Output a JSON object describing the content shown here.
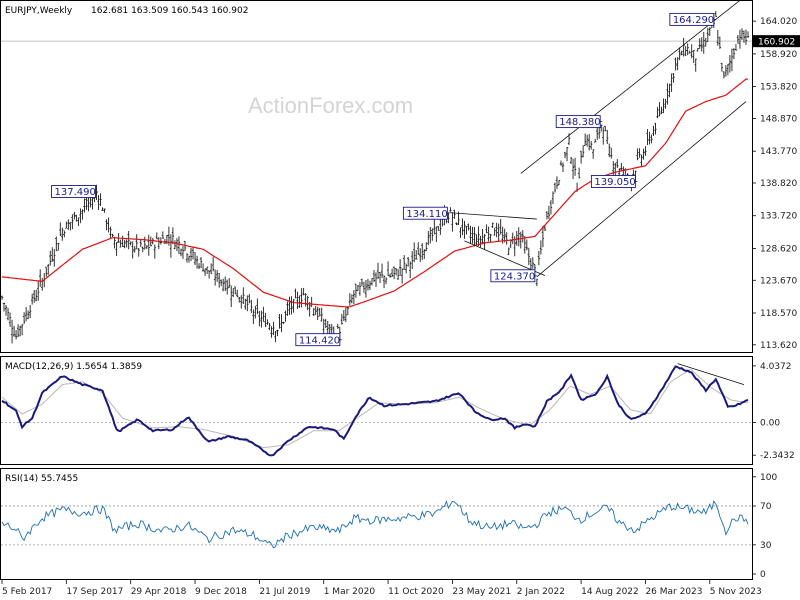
{
  "chart_data": [
    {
      "type": "bar",
      "panel": "price",
      "title": "EURJPY,Weekly",
      "ohlc_header": "162.681 163.509 160.543 160.902",
      "current_price_label": "160.902",
      "current_price": 160.902,
      "watermark": "ActionForex.com",
      "ylim": [
        112.5,
        167.0
      ],
      "y_ticks": [
        113.62,
        118.57,
        123.67,
        128.62,
        133.72,
        138.82,
        143.77,
        148.87,
        153.82,
        158.92,
        164.02
      ],
      "y_tick_labels": [
        "113.620",
        "118.570",
        "123.670",
        "128.620",
        "133.720",
        "138.820",
        "143.770",
        "148.870",
        "153.820",
        "158.920",
        "164.020"
      ],
      "x_tick_labels": [
        "5 Feb 2017",
        "17 Sep 2017",
        "29 Apr 2018",
        "9 Dec 2018",
        "21 Jul 2019",
        "1 Mar 2020",
        "11 Oct 2020",
        "23 May 2021",
        "2 Jan 2022",
        "14 Aug 2022",
        "26 Mar 2023",
        "5 Nov 2023"
      ],
      "x_tick_index": [
        0,
        32,
        64,
        96,
        128,
        160,
        192,
        224,
        256,
        288,
        320,
        352
      ],
      "week_count": 372,
      "price_path": [
        [
          0,
          121
        ],
        [
          14,
          115
        ],
        [
          40,
          123.5
        ],
        [
          60,
          131.5
        ],
        [
          80,
          134.5
        ],
        [
          95,
          137.5
        ],
        [
          110,
          130
        ],
        [
          140,
          128.5
        ],
        [
          165,
          130.5
        ],
        [
          180,
          129
        ],
        [
          195,
          126.5
        ],
        [
          215,
          124
        ],
        [
          235,
          121.5
        ],
        [
          255,
          118
        ],
        [
          275,
          116
        ],
        [
          285,
          119
        ],
        [
          300,
          121.5
        ],
        [
          310,
          119.5
        ],
        [
          320,
          117
        ],
        [
          330,
          115
        ],
        [
          338,
          116.5
        ],
        [
          350,
          121.5
        ],
        [
          370,
          124
        ],
        [
          390,
          124.5
        ],
        [
          410,
          127
        ],
        [
          430,
          131
        ],
        [
          445,
          134.1
        ],
        [
          460,
          131.5
        ],
        [
          475,
          130
        ],
        [
          490,
          132
        ],
        [
          505,
          129
        ],
        [
          515,
          131
        ],
        [
          525,
          127
        ],
        [
          532,
          124.37
        ],
        [
          540,
          132
        ],
        [
          548,
          137
        ],
        [
          556,
          141
        ],
        [
          564,
          145
        ],
        [
          572,
          138.5
        ],
        [
          580,
          146
        ],
        [
          588,
          144
        ],
        [
          597,
          148.38
        ],
        [
          605,
          143
        ],
        [
          615,
          141
        ],
        [
          625,
          139.05
        ],
        [
          632,
          142
        ],
        [
          640,
          144
        ],
        [
          648,
          147
        ],
        [
          656,
          150
        ],
        [
          664,
          154
        ],
        [
          672,
          158
        ],
        [
          680,
          160
        ],
        [
          690,
          158.5
        ],
        [
          700,
          161
        ],
        [
          710,
          164.29
        ],
        [
          718,
          155
        ],
        [
          726,
          158.5
        ],
        [
          734,
          162
        ],
        [
          742,
          161
        ]
      ],
      "ma_path": [
        [
          0,
          124.2
        ],
        [
          40,
          123.5
        ],
        [
          80,
          128.5
        ],
        [
          110,
          130.3
        ],
        [
          140,
          130
        ],
        [
          170,
          129.5
        ],
        [
          200,
          128.5
        ],
        [
          230,
          125.5
        ],
        [
          260,
          121.8
        ],
        [
          290,
          120.2
        ],
        [
          320,
          119.8
        ],
        [
          345,
          119.5
        ],
        [
          360,
          120.3
        ],
        [
          390,
          122
        ],
        [
          420,
          125
        ],
        [
          450,
          128.2
        ],
        [
          480,
          129.5
        ],
        [
          510,
          130
        ],
        [
          530,
          130.5
        ],
        [
          550,
          134
        ],
        [
          570,
          137.5
        ],
        [
          590,
          139.5
        ],
        [
          610,
          140.5
        ],
        [
          640,
          141.5
        ],
        [
          660,
          145
        ],
        [
          680,
          150
        ],
        [
          700,
          151.5
        ],
        [
          720,
          152.5
        ],
        [
          740,
          155
        ]
      ],
      "channel_lines": [
        {
          "from": [
            516,
            140.3
          ],
          "to": [
            740,
            168.0
          ]
        },
        {
          "from": [
            532,
            124.2
          ],
          "to": [
            740,
            151.5
          ]
        }
      ],
      "triangle_lines": [
        {
          "from": [
            445,
            134.2
          ],
          "to": [
            532,
            133.2
          ]
        },
        {
          "from": [
            460,
            129.8
          ],
          "to": [
            540,
            124.4
          ]
        }
      ],
      "annotations": [
        {
          "text": "137.490",
          "x": 95,
          "y": 137.49,
          "placement": "left"
        },
        {
          "text": "114.420",
          "x": 338,
          "y": 114.42,
          "placement": "left"
        },
        {
          "text": "134.110",
          "x": 445,
          "y": 134.11,
          "placement": "left"
        },
        {
          "text": "124.370",
          "x": 532,
          "y": 124.37,
          "placement": "left"
        },
        {
          "text": "148.380",
          "x": 597,
          "y": 148.38,
          "placement": "left"
        },
        {
          "text": "139.050",
          "x": 632,
          "y": 139.05,
          "placement": "left"
        },
        {
          "text": "164.290",
          "x": 710,
          "y": 164.29,
          "placement": "left"
        }
      ]
    },
    {
      "type": "line",
      "panel": "macd",
      "title": "MACD(12,26,9) 1.5654 1.3859",
      "ylim": [
        -2.9,
        4.6
      ],
      "y_tick_labels": [
        "4.0372",
        "0.00",
        "-2.3432"
      ],
      "y_ticks": [
        4.0372,
        0,
        -2.3432
      ],
      "macd_path": [
        [
          0,
          1.6
        ],
        [
          14,
          0.8
        ],
        [
          20,
          -0.3
        ],
        [
          30,
          0.3
        ],
        [
          40,
          2.1
        ],
        [
          60,
          3.3
        ],
        [
          80,
          2.7
        ],
        [
          100,
          2.3
        ],
        [
          115,
          -0.7
        ],
        [
          135,
          0.2
        ],
        [
          150,
          -0.6
        ],
        [
          170,
          -0.5
        ],
        [
          185,
          0.4
        ],
        [
          205,
          -1.4
        ],
        [
          225,
          -1.0
        ],
        [
          245,
          -1.3
        ],
        [
          268,
          -2.4
        ],
        [
          285,
          -1.3
        ],
        [
          305,
          -0.3
        ],
        [
          330,
          -0.5
        ],
        [
          340,
          -1.2
        ],
        [
          350,
          0.2
        ],
        [
          365,
          1.8
        ],
        [
          380,
          1.2
        ],
        [
          400,
          1.3
        ],
        [
          430,
          1.5
        ],
        [
          455,
          2.1
        ],
        [
          470,
          0.8
        ],
        [
          485,
          0.2
        ],
        [
          500,
          0.3
        ],
        [
          510,
          -0.4
        ],
        [
          520,
          -0.1
        ],
        [
          530,
          -0.3
        ],
        [
          542,
          1.5
        ],
        [
          556,
          2.3
        ],
        [
          566,
          3.4
        ],
        [
          576,
          1.6
        ],
        [
          592,
          2.1
        ],
        [
          602,
          3.3
        ],
        [
          612,
          1.4
        ],
        [
          625,
          0.2
        ],
        [
          640,
          0.6
        ],
        [
          655,
          2.2
        ],
        [
          670,
          4.0
        ],
        [
          685,
          3.6
        ],
        [
          700,
          2.3
        ],
        [
          710,
          3.1
        ],
        [
          722,
          1.1
        ],
        [
          730,
          1.2
        ],
        [
          742,
          1.6
        ]
      ],
      "signal_path": [
        [
          0,
          1.8
        ],
        [
          20,
          0.6
        ],
        [
          40,
          1.3
        ],
        [
          60,
          2.7
        ],
        [
          80,
          2.9
        ],
        [
          100,
          2.1
        ],
        [
          120,
          0.3
        ],
        [
          150,
          -0.4
        ],
        [
          175,
          -0.3
        ],
        [
          200,
          -0.5
        ],
        [
          230,
          -1.0
        ],
        [
          260,
          -1.8
        ],
        [
          285,
          -1.6
        ],
        [
          310,
          -0.6
        ],
        [
          335,
          -0.6
        ],
        [
          355,
          0.4
        ],
        [
          375,
          1.4
        ],
        [
          400,
          1.3
        ],
        [
          430,
          1.4
        ],
        [
          455,
          1.8
        ],
        [
          475,
          1.0
        ],
        [
          500,
          0.2
        ],
        [
          525,
          -0.2
        ],
        [
          545,
          0.9
        ],
        [
          565,
          2.6
        ],
        [
          585,
          2.0
        ],
        [
          605,
          2.6
        ],
        [
          625,
          0.9
        ],
        [
          645,
          0.6
        ],
        [
          665,
          2.9
        ],
        [
          685,
          3.8
        ],
        [
          705,
          2.5
        ],
        [
          725,
          1.6
        ],
        [
          742,
          1.4
        ]
      ],
      "divergence_line": {
        "from": [
          672,
          4.2
        ],
        "to": [
          738,
          2.7
        ]
      }
    },
    {
      "type": "line",
      "panel": "rsi",
      "title": "RSI(14) 55.7455",
      "ylim": [
        0,
        100
      ],
      "y_tick_labels": [
        "100",
        "70",
        "30",
        "0"
      ],
      "y_ticks": [
        100,
        70,
        30,
        0
      ],
      "reference_levels": [
        70,
        30
      ],
      "rsi_path": [
        [
          0,
          52
        ],
        [
          14,
          46
        ],
        [
          20,
          36
        ],
        [
          40,
          58
        ],
        [
          60,
          66
        ],
        [
          80,
          63
        ],
        [
          100,
          67
        ],
        [
          112,
          45
        ],
        [
          135,
          52
        ],
        [
          160,
          44
        ],
        [
          185,
          50
        ],
        [
          205,
          36
        ],
        [
          230,
          45
        ],
        [
          250,
          40
        ],
        [
          268,
          28
        ],
        [
          285,
          40
        ],
        [
          310,
          48
        ],
        [
          335,
          44
        ],
        [
          350,
          57
        ],
        [
          370,
          55
        ],
        [
          400,
          58
        ],
        [
          430,
          62
        ],
        [
          450,
          76
        ],
        [
          465,
          55
        ],
        [
          485,
          47
        ],
        [
          505,
          52
        ],
        [
          520,
          47
        ],
        [
          530,
          50
        ],
        [
          545,
          64
        ],
        [
          560,
          67
        ],
        [
          575,
          56
        ],
        [
          590,
          64
        ],
        [
          602,
          68
        ],
        [
          615,
          52
        ],
        [
          630,
          45
        ],
        [
          645,
          57
        ],
        [
          665,
          70
        ],
        [
          685,
          66
        ],
        [
          700,
          63
        ],
        [
          710,
          74
        ],
        [
          720,
          45
        ],
        [
          730,
          58
        ],
        [
          742,
          55
        ]
      ]
    }
  ]
}
